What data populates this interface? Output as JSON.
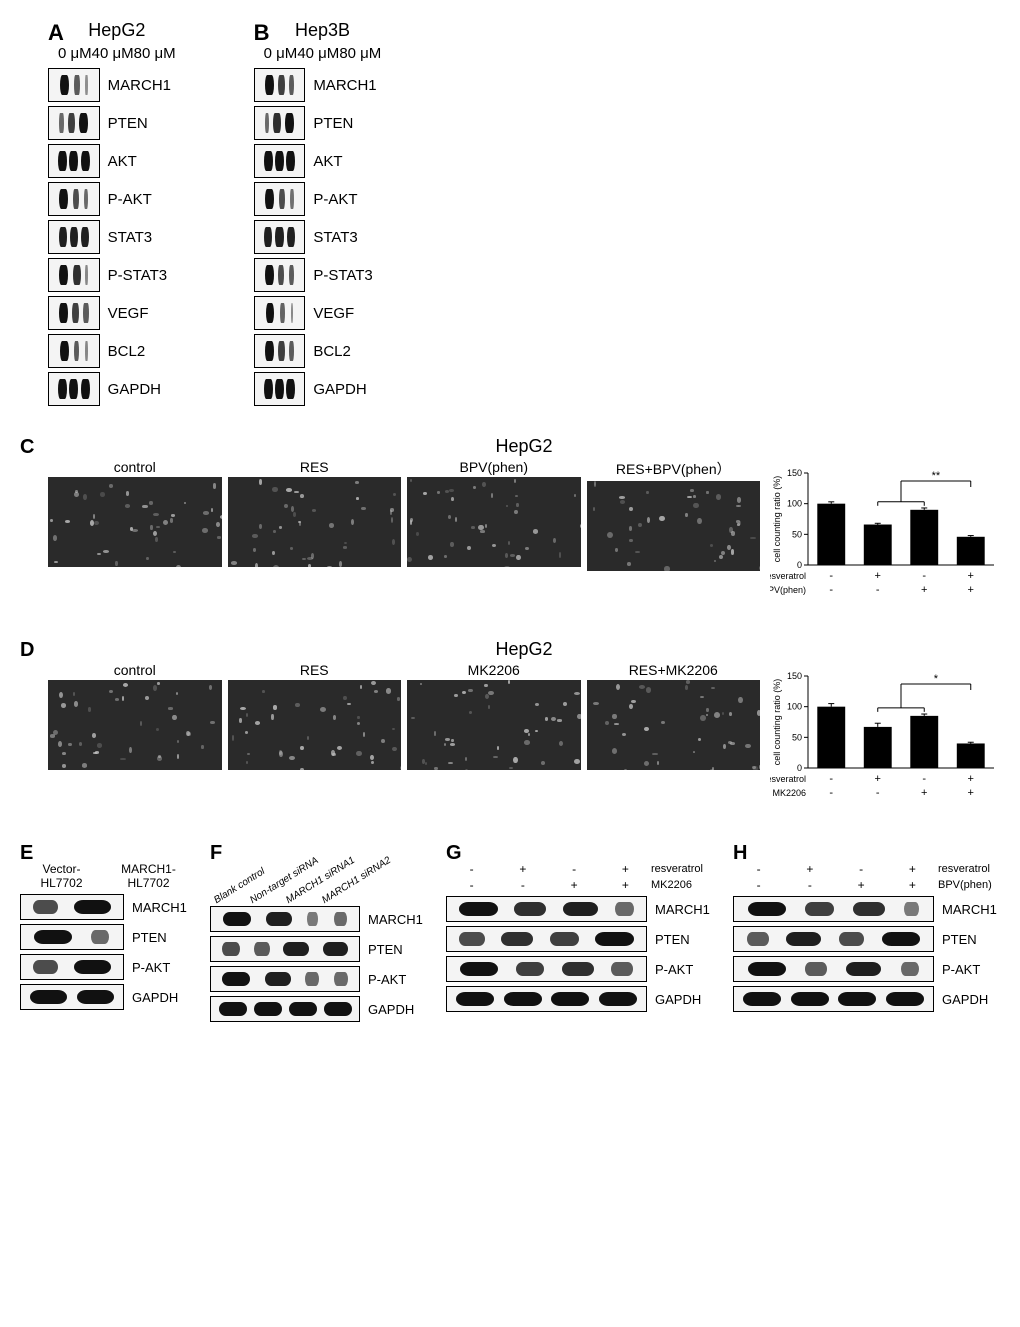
{
  "panels": {
    "A": {
      "letter": "A",
      "cell_line": "HepG2",
      "concentrations": [
        "0 μM",
        "40 μM",
        "80 μM"
      ],
      "rows": [
        {
          "label": "MARCH1",
          "intensities": [
            1.0,
            0.5,
            0.15
          ]
        },
        {
          "label": "PTEN",
          "intensities": [
            0.4,
            0.7,
            1.0
          ]
        },
        {
          "label": "AKT",
          "intensities": [
            1.0,
            1.0,
            1.0
          ]
        },
        {
          "label": "P-AKT",
          "intensities": [
            1.0,
            0.6,
            0.4
          ]
        },
        {
          "label": "STAT3",
          "intensities": [
            0.9,
            0.9,
            0.9
          ]
        },
        {
          "label": "P-STAT3",
          "intensities": [
            1.0,
            0.8,
            0.2
          ]
        },
        {
          "label": "VEGF",
          "intensities": [
            1.0,
            0.7,
            0.5
          ]
        },
        {
          "label": "BCL2",
          "intensities": [
            1.0,
            0.5,
            0.2
          ]
        },
        {
          "label": "GAPDH",
          "intensities": [
            1.0,
            1.0,
            1.0
          ]
        }
      ]
    },
    "B": {
      "letter": "B",
      "cell_line": "Hep3B",
      "concentrations": [
        "0 μM",
        "40 μM",
        "80 μM"
      ],
      "rows": [
        {
          "label": "MARCH1",
          "intensities": [
            1.0,
            0.7,
            0.5
          ]
        },
        {
          "label": "PTEN",
          "intensities": [
            0.4,
            0.8,
            1.0
          ]
        },
        {
          "label": "AKT",
          "intensities": [
            1.0,
            1.0,
            1.0
          ]
        },
        {
          "label": "P-AKT",
          "intensities": [
            1.0,
            0.6,
            0.35
          ]
        },
        {
          "label": "STAT3",
          "intensities": [
            0.9,
            0.9,
            0.9
          ]
        },
        {
          "label": "P-STAT3",
          "intensities": [
            1.0,
            0.6,
            0.5
          ]
        },
        {
          "label": "VEGF",
          "intensities": [
            1.0,
            0.45,
            0.2
          ]
        },
        {
          "label": "BCL2",
          "intensities": [
            1.0,
            0.7,
            0.5
          ]
        },
        {
          "label": "GAPDH",
          "intensities": [
            1.0,
            1.0,
            1.0
          ]
        }
      ]
    },
    "C": {
      "letter": "C",
      "cell_line": "HepG2",
      "conditions": [
        "control",
        "RES",
        "BPV(phen)",
        "RES+BPV(phen）"
      ],
      "chart": {
        "ylabel": "cell counting ratio (%)",
        "ylim": [
          0,
          150
        ],
        "yticks": [
          0,
          50,
          100,
          150
        ],
        "values": [
          100,
          66,
          90,
          46
        ],
        "errors": [
          3,
          2,
          3,
          2
        ],
        "bar_color": "#000000",
        "sig_label": "**",
        "row1_name": "resveratrol",
        "row1": [
          "-",
          "+",
          "-",
          "+"
        ],
        "row2_name": "BPV(phen)",
        "row2": [
          "-",
          "-",
          "+",
          "+"
        ]
      }
    },
    "D": {
      "letter": "D",
      "cell_line": "HepG2",
      "conditions": [
        "control",
        "RES",
        "MK2206",
        "RES+MK2206"
      ],
      "chart": {
        "ylabel": "cell counting ratio (%)",
        "ylim": [
          0,
          150
        ],
        "yticks": [
          0,
          50,
          100,
          150
        ],
        "values": [
          100,
          67,
          85,
          40
        ],
        "errors": [
          5,
          6,
          3,
          2
        ],
        "bar_color": "#000000",
        "sig_label": "*",
        "row1_name": "resveratrol",
        "row1": [
          "-",
          "+",
          "-",
          "+"
        ],
        "row2_name": "MK2206",
        "row2": [
          "-",
          "-",
          "+",
          "+"
        ]
      }
    },
    "E": {
      "letter": "E",
      "headers": [
        "Vector-\nHL7702",
        "MARCH1-\nHL7702"
      ],
      "rows": [
        {
          "label": "MARCH1",
          "intensities": [
            0.6,
            1.0
          ]
        },
        {
          "label": "PTEN",
          "intensities": [
            1.0,
            0.4
          ]
        },
        {
          "label": "P-AKT",
          "intensities": [
            0.6,
            1.0
          ]
        },
        {
          "label": "GAPDH",
          "intensities": [
            1.0,
            1.0
          ]
        }
      ]
    },
    "F": {
      "letter": "F",
      "headers": [
        "Blank control",
        "Non-target siRNA",
        "MARCH1 siRNA1",
        "MARCH1 siRNA2"
      ],
      "rows": [
        {
          "label": "MARCH1",
          "intensities": [
            1.0,
            0.9,
            0.3,
            0.4
          ]
        },
        {
          "label": "PTEN",
          "intensities": [
            0.6,
            0.5,
            0.9,
            0.9
          ]
        },
        {
          "label": "P-AKT",
          "intensities": [
            1.0,
            0.9,
            0.4,
            0.4
          ]
        },
        {
          "label": "GAPDH",
          "intensities": [
            1.0,
            1.0,
            1.0,
            1.0
          ]
        }
      ]
    },
    "G": {
      "letter": "G",
      "row1_name": "resveratrol",
      "row1": [
        "-",
        "+",
        "-",
        "+"
      ],
      "row2_name": "MK2206",
      "row2": [
        "-",
        "-",
        "+",
        "+"
      ],
      "rows": [
        {
          "label": "MARCH1",
          "intensities": [
            1.0,
            0.8,
            0.9,
            0.4
          ]
        },
        {
          "label": "PTEN",
          "intensities": [
            0.6,
            0.8,
            0.7,
            1.0
          ]
        },
        {
          "label": "P-AKT",
          "intensities": [
            1.0,
            0.7,
            0.8,
            0.5
          ]
        },
        {
          "label": "GAPDH",
          "intensities": [
            1.0,
            1.0,
            1.0,
            1.0
          ]
        }
      ]
    },
    "H": {
      "letter": "H",
      "row1_name": "resveratrol",
      "row1": [
        "-",
        "+",
        "-",
        "+"
      ],
      "row2_name": "BPV(phen)",
      "row2": [
        "-",
        "-",
        "+",
        "+"
      ],
      "rows": [
        {
          "label": "MARCH1",
          "intensities": [
            1.0,
            0.7,
            0.8,
            0.3
          ]
        },
        {
          "label": "PTEN",
          "intensities": [
            0.5,
            0.9,
            0.6,
            1.0
          ]
        },
        {
          "label": "P-AKT",
          "intensities": [
            1.0,
            0.5,
            0.9,
            0.4
          ]
        },
        {
          "label": "GAPDH",
          "intensities": [
            1.0,
            1.0,
            1.0,
            1.0
          ]
        }
      ]
    }
  },
  "style": {
    "band_max_width_pct": 80,
    "band_min_width_pct": 12,
    "band_color": "#111111",
    "blot_border": "#000000",
    "blot_bg": "#f2f2f2",
    "cell_img_bg": "#2a2a2a"
  }
}
